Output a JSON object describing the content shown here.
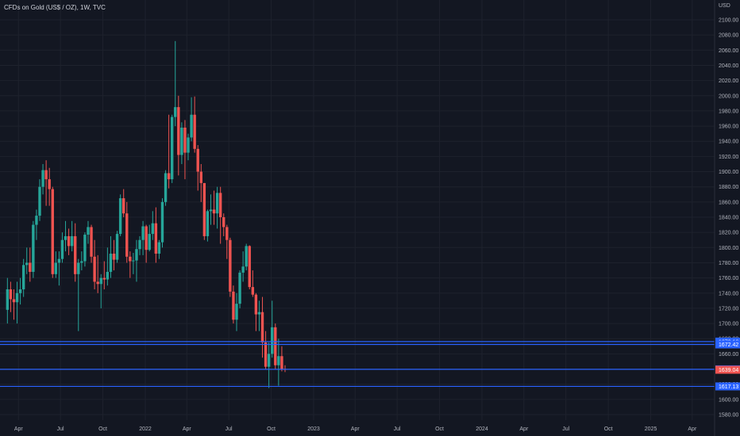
{
  "header": {
    "title": "CFDs on Gold (US$ / OZ), 1W, TVC",
    "currency": "USD"
  },
  "colors": {
    "background": "#131722",
    "up": "#26a69a",
    "down": "#ef5350",
    "level_line": "#2962ff",
    "text": "#b2b5be"
  },
  "chart_data": {
    "type": "candlestick",
    "title": "CFDs on Gold (US$ / OZ), 1W, TVC",
    "ylabel": "USD",
    "ylim": [
      1570,
      2110
    ],
    "y_ticks": [
      1580,
      1600,
      1620,
      1640,
      1660,
      1680,
      1700,
      1720,
      1740,
      1760,
      1780,
      1800,
      1820,
      1840,
      1860,
      1880,
      1900,
      1920,
      1940,
      1960,
      1980,
      2000,
      2020,
      2040,
      2060,
      2080,
      2100
    ],
    "x_ticks": [
      {
        "label": "Apr",
        "date": "2021-04-01"
      },
      {
        "label": "Jul",
        "date": "2021-07-01"
      },
      {
        "label": "Oct",
        "date": "2021-10-01"
      },
      {
        "label": "2022",
        "date": "2022-01-01"
      },
      {
        "label": "Apr",
        "date": "2022-04-01"
      },
      {
        "label": "Jul",
        "date": "2022-07-01"
      },
      {
        "label": "Oct",
        "date": "2022-10-01"
      },
      {
        "label": "2023",
        "date": "2023-01-01"
      },
      {
        "label": "Apr",
        "date": "2023-04-01"
      },
      {
        "label": "Jul",
        "date": "2023-07-01"
      },
      {
        "label": "Oct",
        "date": "2023-10-01"
      },
      {
        "label": "2024",
        "date": "2024-01-01"
      },
      {
        "label": "Apr",
        "date": "2024-04-01"
      },
      {
        "label": "Jul",
        "date": "2024-07-01"
      },
      {
        "label": "Oct",
        "date": "2024-10-01"
      },
      {
        "label": "2025",
        "date": "2025-01-01"
      },
      {
        "label": "Apr",
        "date": "2025-04-01"
      }
    ],
    "horizontal_levels": [
      {
        "value": 1676.16,
        "label": "1676.16",
        "tag_color": "#2962ff"
      },
      {
        "value": 1672.42,
        "label": "1672.42",
        "tag_color": "#2962ff"
      },
      {
        "value": 1639.64,
        "label": "1639.64",
        "tag_color": "#2962ff"
      },
      {
        "value": 1617.13,
        "label": "1617.13",
        "tag_color": "#2962ff"
      }
    ],
    "last_price": {
      "value": 1639.04,
      "label": "1639.04",
      "tag_color": "#ef5350"
    },
    "candles": [
      {
        "date": "2021-03-08",
        "o": 1718,
        "h": 1760,
        "l": 1700,
        "c": 1745
      },
      {
        "date": "2021-03-15",
        "o": 1745,
        "h": 1755,
        "l": 1715,
        "c": 1732
      },
      {
        "date": "2021-03-22",
        "o": 1732,
        "h": 1745,
        "l": 1705,
        "c": 1728
      },
      {
        "date": "2021-03-29",
        "o": 1728,
        "h": 1755,
        "l": 1700,
        "c": 1740
      },
      {
        "date": "2021-04-05",
        "o": 1740,
        "h": 1760,
        "l": 1725,
        "c": 1745
      },
      {
        "date": "2021-04-12",
        "o": 1745,
        "h": 1785,
        "l": 1735,
        "c": 1777
      },
      {
        "date": "2021-04-19",
        "o": 1777,
        "h": 1800,
        "l": 1765,
        "c": 1780
      },
      {
        "date": "2021-04-26",
        "o": 1780,
        "h": 1800,
        "l": 1755,
        "c": 1768
      },
      {
        "date": "2021-05-03",
        "o": 1768,
        "h": 1835,
        "l": 1760,
        "c": 1830
      },
      {
        "date": "2021-05-10",
        "o": 1830,
        "h": 1850,
        "l": 1810,
        "c": 1842
      },
      {
        "date": "2021-05-17",
        "o": 1842,
        "h": 1890,
        "l": 1835,
        "c": 1880
      },
      {
        "date": "2021-05-24",
        "o": 1880,
        "h": 1910,
        "l": 1870,
        "c": 1902
      },
      {
        "date": "2021-05-31",
        "o": 1902,
        "h": 1915,
        "l": 1855,
        "c": 1890
      },
      {
        "date": "2021-06-07",
        "o": 1890,
        "h": 1905,
        "l": 1855,
        "c": 1877
      },
      {
        "date": "2021-06-14",
        "o": 1877,
        "h": 1880,
        "l": 1760,
        "c": 1765
      },
      {
        "date": "2021-06-21",
        "o": 1765,
        "h": 1795,
        "l": 1760,
        "c": 1780
      },
      {
        "date": "2021-06-28",
        "o": 1780,
        "h": 1795,
        "l": 1750,
        "c": 1785
      },
      {
        "date": "2021-07-05",
        "o": 1785,
        "h": 1820,
        "l": 1780,
        "c": 1810
      },
      {
        "date": "2021-07-12",
        "o": 1810,
        "h": 1835,
        "l": 1795,
        "c": 1815
      },
      {
        "date": "2021-07-19",
        "o": 1815,
        "h": 1825,
        "l": 1790,
        "c": 1802
      },
      {
        "date": "2021-07-26",
        "o": 1802,
        "h": 1835,
        "l": 1795,
        "c": 1815
      },
      {
        "date": "2021-08-02",
        "o": 1815,
        "h": 1832,
        "l": 1755,
        "c": 1765
      },
      {
        "date": "2021-08-09",
        "o": 1765,
        "h": 1785,
        "l": 1690,
        "c": 1780
      },
      {
        "date": "2021-08-16",
        "o": 1780,
        "h": 1795,
        "l": 1770,
        "c": 1782
      },
      {
        "date": "2021-08-23",
        "o": 1782,
        "h": 1820,
        "l": 1775,
        "c": 1817
      },
      {
        "date": "2021-08-30",
        "o": 1817,
        "h": 1835,
        "l": 1805,
        "c": 1827
      },
      {
        "date": "2021-09-06",
        "o": 1827,
        "h": 1830,
        "l": 1780,
        "c": 1788
      },
      {
        "date": "2021-09-13",
        "o": 1788,
        "h": 1810,
        "l": 1745,
        "c": 1755
      },
      {
        "date": "2021-09-20",
        "o": 1755,
        "h": 1790,
        "l": 1740,
        "c": 1752
      },
      {
        "date": "2021-09-27",
        "o": 1752,
        "h": 1765,
        "l": 1720,
        "c": 1760
      },
      {
        "date": "2021-10-04",
        "o": 1760,
        "h": 1782,
        "l": 1745,
        "c": 1758
      },
      {
        "date": "2021-10-11",
        "o": 1758,
        "h": 1800,
        "l": 1750,
        "c": 1768
      },
      {
        "date": "2021-10-18",
        "o": 1768,
        "h": 1815,
        "l": 1760,
        "c": 1792
      },
      {
        "date": "2021-10-25",
        "o": 1792,
        "h": 1810,
        "l": 1770,
        "c": 1784
      },
      {
        "date": "2021-11-01",
        "o": 1784,
        "h": 1822,
        "l": 1780,
        "c": 1818
      },
      {
        "date": "2021-11-08",
        "o": 1818,
        "h": 1870,
        "l": 1815,
        "c": 1865
      },
      {
        "date": "2021-11-15",
        "o": 1865,
        "h": 1877,
        "l": 1840,
        "c": 1845
      },
      {
        "date": "2021-11-22",
        "o": 1845,
        "h": 1860,
        "l": 1780,
        "c": 1788
      },
      {
        "date": "2021-11-29",
        "o": 1788,
        "h": 1795,
        "l": 1760,
        "c": 1782
      },
      {
        "date": "2021-12-06",
        "o": 1782,
        "h": 1793,
        "l": 1765,
        "c": 1783
      },
      {
        "date": "2021-12-13",
        "o": 1783,
        "h": 1810,
        "l": 1755,
        "c": 1798
      },
      {
        "date": "2021-12-20",
        "o": 1798,
        "h": 1815,
        "l": 1790,
        "c": 1810
      },
      {
        "date": "2021-12-27",
        "o": 1810,
        "h": 1835,
        "l": 1790,
        "c": 1828
      },
      {
        "date": "2022-01-03",
        "o": 1828,
        "h": 1830,
        "l": 1780,
        "c": 1797
      },
      {
        "date": "2022-01-10",
        "o": 1797,
        "h": 1830,
        "l": 1795,
        "c": 1818
      },
      {
        "date": "2022-01-17",
        "o": 1818,
        "h": 1848,
        "l": 1810,
        "c": 1832
      },
      {
        "date": "2022-01-24",
        "o": 1832,
        "h": 1853,
        "l": 1780,
        "c": 1792
      },
      {
        "date": "2022-01-31",
        "o": 1792,
        "h": 1810,
        "l": 1785,
        "c": 1807
      },
      {
        "date": "2022-02-07",
        "o": 1807,
        "h": 1865,
        "l": 1800,
        "c": 1860
      },
      {
        "date": "2022-02-14",
        "o": 1860,
        "h": 1902,
        "l": 1855,
        "c": 1898
      },
      {
        "date": "2022-02-21",
        "o": 1898,
        "h": 1975,
        "l": 1878,
        "c": 1890
      },
      {
        "date": "2022-02-28",
        "o": 1890,
        "h": 1975,
        "l": 1885,
        "c": 1972
      },
      {
        "date": "2022-03-07",
        "o": 1972,
        "h": 2072,
        "l": 1960,
        "c": 1985
      },
      {
        "date": "2022-03-14",
        "o": 1985,
        "h": 2000,
        "l": 1895,
        "c": 1922
      },
      {
        "date": "2022-03-21",
        "o": 1922,
        "h": 1965,
        "l": 1910,
        "c": 1958
      },
      {
        "date": "2022-03-28",
        "o": 1958,
        "h": 1968,
        "l": 1890,
        "c": 1925
      },
      {
        "date": "2022-04-04",
        "o": 1925,
        "h": 1950,
        "l": 1915,
        "c": 1945
      },
      {
        "date": "2022-04-11",
        "o": 1945,
        "h": 1998,
        "l": 1940,
        "c": 1975
      },
      {
        "date": "2022-04-18",
        "o": 1975,
        "h": 1999,
        "l": 1925,
        "c": 1930
      },
      {
        "date": "2022-04-25",
        "o": 1930,
        "h": 1935,
        "l": 1875,
        "c": 1900
      },
      {
        "date": "2022-05-02",
        "o": 1900,
        "h": 1910,
        "l": 1860,
        "c": 1885
      },
      {
        "date": "2022-05-09",
        "o": 1885,
        "h": 1885,
        "l": 1810,
        "c": 1815
      },
      {
        "date": "2022-05-16",
        "o": 1815,
        "h": 1850,
        "l": 1808,
        "c": 1848
      },
      {
        "date": "2022-05-23",
        "o": 1848,
        "h": 1870,
        "l": 1830,
        "c": 1850
      },
      {
        "date": "2022-05-30",
        "o": 1850,
        "h": 1875,
        "l": 1830,
        "c": 1845
      },
      {
        "date": "2022-06-06",
        "o": 1845,
        "h": 1880,
        "l": 1825,
        "c": 1872
      },
      {
        "date": "2022-06-13",
        "o": 1872,
        "h": 1880,
        "l": 1805,
        "c": 1840
      },
      {
        "date": "2022-06-20",
        "o": 1840,
        "h": 1845,
        "l": 1815,
        "c": 1827
      },
      {
        "date": "2022-06-27",
        "o": 1827,
        "h": 1830,
        "l": 1785,
        "c": 1810
      },
      {
        "date": "2022-07-04",
        "o": 1810,
        "h": 1813,
        "l": 1735,
        "c": 1742
      },
      {
        "date": "2022-07-11",
        "o": 1742,
        "h": 1750,
        "l": 1700,
        "c": 1705
      },
      {
        "date": "2022-07-18",
        "o": 1705,
        "h": 1740,
        "l": 1690,
        "c": 1726
      },
      {
        "date": "2022-07-25",
        "o": 1726,
        "h": 1770,
        "l": 1720,
        "c": 1767
      },
      {
        "date": "2022-08-01",
        "o": 1767,
        "h": 1795,
        "l": 1755,
        "c": 1775
      },
      {
        "date": "2022-08-08",
        "o": 1775,
        "h": 1805,
        "l": 1770,
        "c": 1802
      },
      {
        "date": "2022-08-15",
        "o": 1802,
        "h": 1803,
        "l": 1745,
        "c": 1748
      },
      {
        "date": "2022-08-22",
        "o": 1748,
        "h": 1770,
        "l": 1735,
        "c": 1738
      },
      {
        "date": "2022-08-29",
        "o": 1738,
        "h": 1740,
        "l": 1690,
        "c": 1712
      },
      {
        "date": "2022-09-05",
        "o": 1712,
        "h": 1730,
        "l": 1690,
        "c": 1715
      },
      {
        "date": "2022-09-12",
        "o": 1715,
        "h": 1735,
        "l": 1655,
        "c": 1675
      },
      {
        "date": "2022-09-19",
        "o": 1675,
        "h": 1690,
        "l": 1640,
        "c": 1643
      },
      {
        "date": "2022-09-26",
        "o": 1643,
        "h": 1675,
        "l": 1615,
        "c": 1660
      },
      {
        "date": "2022-10-03",
        "o": 1660,
        "h": 1730,
        "l": 1655,
        "c": 1695
      },
      {
        "date": "2022-10-10",
        "o": 1695,
        "h": 1700,
        "l": 1640,
        "c": 1645
      },
      {
        "date": "2022-10-17",
        "o": 1645,
        "h": 1680,
        "l": 1618,
        "c": 1657
      },
      {
        "date": "2022-10-24",
        "o": 1657,
        "h": 1670,
        "l": 1637,
        "c": 1640
      },
      {
        "date": "2022-10-31",
        "o": 1640,
        "h": 1645,
        "l": 1636,
        "c": 1639
      }
    ]
  }
}
